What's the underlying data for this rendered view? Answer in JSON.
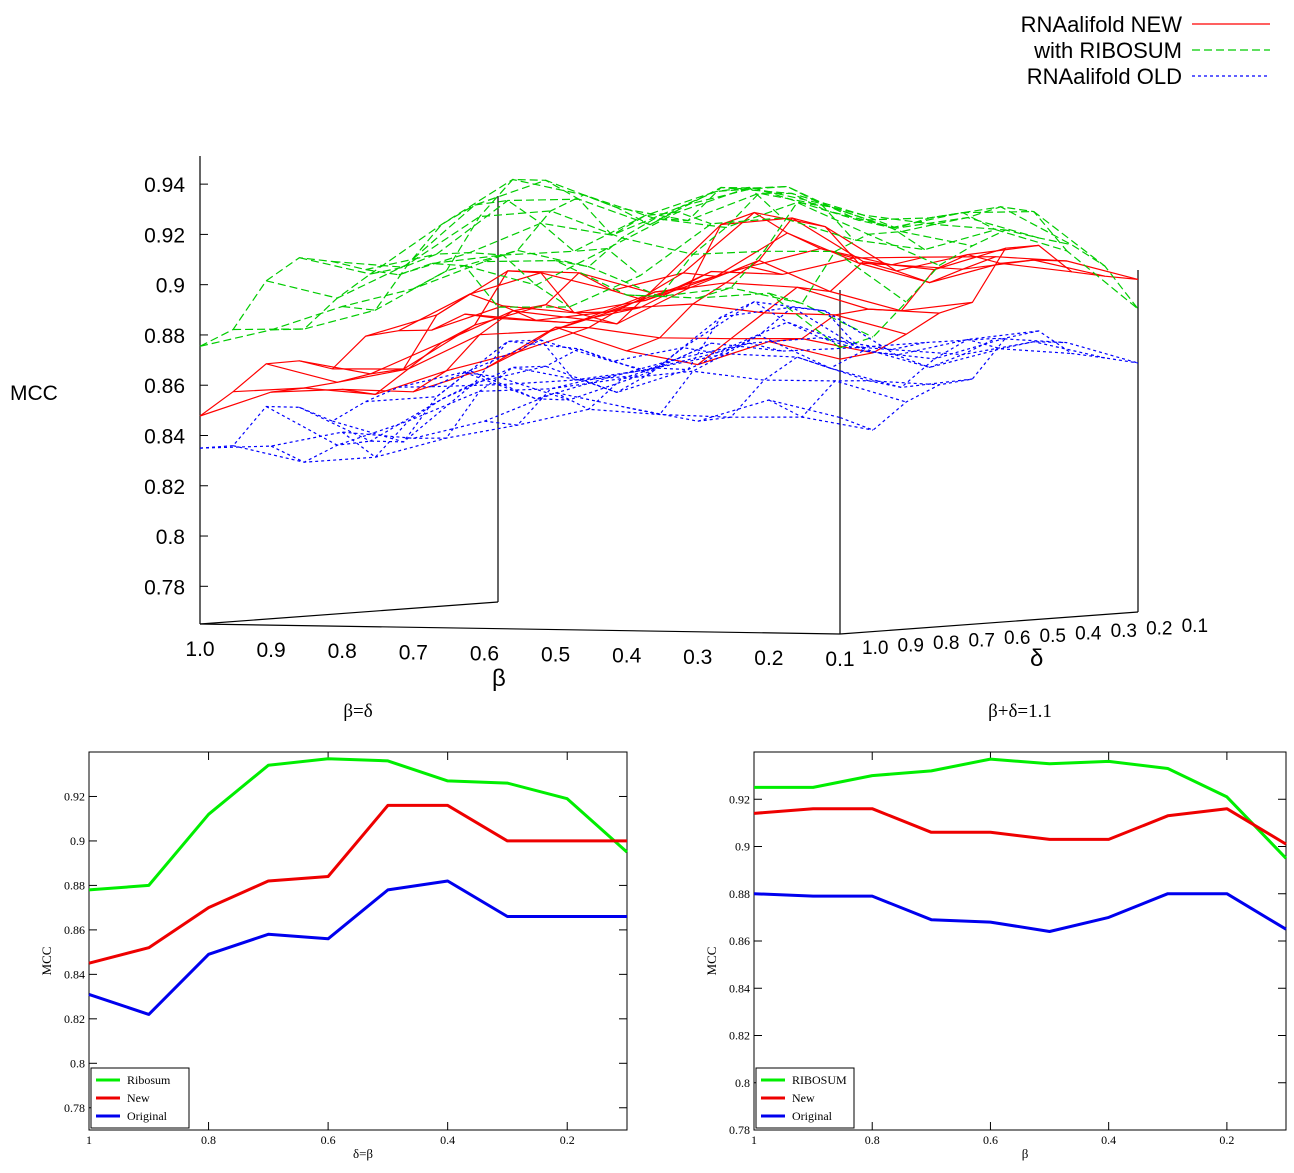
{
  "chart_data": [
    {
      "type": "surface3d",
      "xlabel": "β",
      "ylabel": "δ",
      "zlabel": "MCC",
      "zlim": [
        0.765,
        0.95
      ],
      "z_ticks": [
        "0.78",
        "0.8",
        "0.82",
        "0.84",
        "0.86",
        "0.88",
        "0.9",
        "0.92",
        "0.94"
      ],
      "x_ticks": [
        "1.0",
        "0.9",
        "0.8",
        "0.7",
        "0.6",
        "0.5",
        "0.4",
        "0.3",
        "0.2",
        "0.1"
      ],
      "y_ticks": [
        "1.0",
        "0.9",
        "0.8",
        "0.7",
        "0.6",
        "0.5",
        "0.4",
        "0.3",
        "0.2",
        "0.1"
      ],
      "grid": false,
      "legend": "top-right",
      "series": [
        {
          "name": "RNAalifold NEW",
          "color": "#ff0000",
          "dash": "solid",
          "delta_eq_beta": [
            0.845,
            0.852,
            0.87,
            0.882,
            0.884,
            0.916,
            0.916,
            0.9,
            0.9,
            0.9
          ],
          "beta_plus_delta": [
            0.914,
            0.916,
            0.916,
            0.906,
            0.906,
            0.903,
            0.903,
            0.913,
            0.916,
            0.901
          ]
        },
        {
          "name": "with RIBOSUM",
          "color": "#00cc00",
          "dash": "dashed",
          "delta_eq_beta": [
            0.878,
            0.88,
            0.912,
            0.934,
            0.937,
            0.936,
            0.927,
            0.926,
            0.919,
            0.895
          ],
          "beta_plus_delta": [
            0.925,
            0.925,
            0.93,
            0.932,
            0.937,
            0.935,
            0.936,
            0.933,
            0.921,
            0.895
          ]
        },
        {
          "name": "RNAalifold OLD",
          "color": "#0000ff",
          "dash": "dotted",
          "delta_eq_beta": [
            0.831,
            0.822,
            0.849,
            0.858,
            0.856,
            0.878,
            0.882,
            0.866,
            0.866,
            0.866
          ],
          "beta_plus_delta": [
            0.88,
            0.879,
            0.879,
            0.869,
            0.868,
            0.864,
            0.87,
            0.88,
            0.88,
            0.865
          ]
        }
      ]
    },
    {
      "type": "line",
      "title": "β=δ",
      "xlabel": "δ=β",
      "ylabel": "MCC",
      "x": [
        1.0,
        0.9,
        0.8,
        0.7,
        0.6,
        0.5,
        0.4,
        0.3,
        0.2,
        0.1
      ],
      "xlim": [
        1.0,
        0.1
      ],
      "ylim": [
        0.77,
        0.94
      ],
      "x_ticks": [
        "1",
        "0.8",
        "0.6",
        "0.4",
        "0.2"
      ],
      "y_ticks": [
        "0.78",
        "0.8",
        "0.82",
        "0.84",
        "0.86",
        "0.88",
        "0.9",
        "0.92"
      ],
      "grid": false,
      "legend": "bottom-left",
      "series": [
        {
          "name": "Ribosum",
          "color": "#00ee00",
          "values": [
            0.878,
            0.88,
            0.912,
            0.934,
            0.937,
            0.936,
            0.927,
            0.926,
            0.919,
            0.895
          ]
        },
        {
          "name": "New",
          "color": "#ee0000",
          "values": [
            0.845,
            0.852,
            0.87,
            0.882,
            0.884,
            0.916,
            0.916,
            0.9,
            0.9,
            0.9
          ]
        },
        {
          "name": "Original",
          "color": "#0000ee",
          "values": [
            0.831,
            0.822,
            0.849,
            0.858,
            0.856,
            0.878,
            0.882,
            0.866,
            0.866,
            0.866
          ]
        }
      ]
    },
    {
      "type": "line",
      "title": "β+δ=1.1",
      "xlabel": "β",
      "ylabel": "MCC",
      "x": [
        1.0,
        0.9,
        0.8,
        0.7,
        0.6,
        0.5,
        0.4,
        0.3,
        0.2,
        0.1
      ],
      "xlim": [
        1.0,
        0.1
      ],
      "ylim": [
        0.78,
        0.94
      ],
      "x_ticks": [
        "1",
        "0.8",
        "0.6",
        "0.4",
        "0.2"
      ],
      "y_ticks": [
        "0.78",
        "0.8",
        "0.82",
        "0.84",
        "0.86",
        "0.88",
        "0.9",
        "0.92"
      ],
      "grid": false,
      "legend": "bottom-left",
      "series": [
        {
          "name": "RIBOSUM",
          "color": "#00ee00",
          "values": [
            0.925,
            0.925,
            0.93,
            0.932,
            0.937,
            0.935,
            0.936,
            0.933,
            0.921,
            0.895
          ]
        },
        {
          "name": "New",
          "color": "#ee0000",
          "values": [
            0.914,
            0.916,
            0.916,
            0.906,
            0.906,
            0.903,
            0.903,
            0.913,
            0.916,
            0.901
          ]
        },
        {
          "name": "Original",
          "color": "#0000ee",
          "values": [
            0.88,
            0.879,
            0.879,
            0.869,
            0.868,
            0.864,
            0.87,
            0.88,
            0.88,
            0.865
          ]
        }
      ]
    }
  ]
}
